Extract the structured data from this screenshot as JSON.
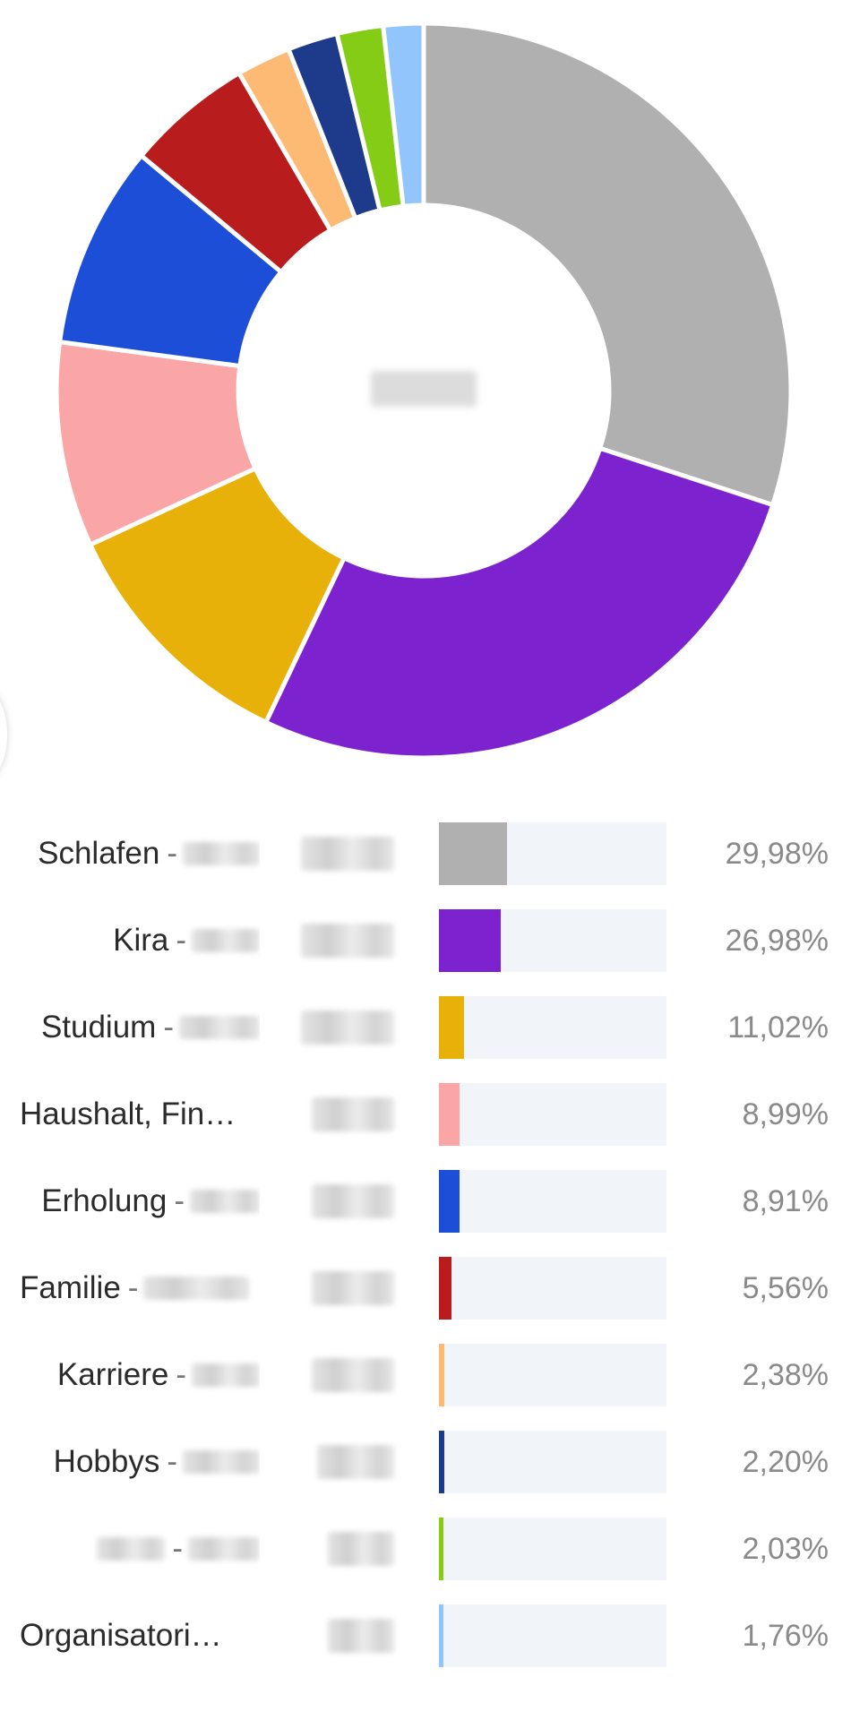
{
  "center_label": "",
  "chart_data": {
    "type": "pie",
    "title": "",
    "series": [
      {
        "name": "Schlafen",
        "value": 29.98,
        "percent_label": "29,98%",
        "color": "#b0b0b0"
      },
      {
        "name": "Kira",
        "value": 26.98,
        "percent_label": "26,98%",
        "color": "#7d22cf"
      },
      {
        "name": "Studium",
        "value": 11.02,
        "percent_label": "11,02%",
        "color": "#e8b10a"
      },
      {
        "name": "Haushalt, Fin…",
        "value": 8.99,
        "percent_label": "8,99%",
        "color": "#fba6a6"
      },
      {
        "name": "Erholung",
        "value": 8.91,
        "percent_label": "8,91%",
        "color": "#1d4ed8"
      },
      {
        "name": "Familie",
        "value": 5.56,
        "percent_label": "5,56%",
        "color": "#b91c1c"
      },
      {
        "name": "Karriere",
        "value": 2.38,
        "percent_label": "2,38%",
        "color": "#fdba74"
      },
      {
        "name": "Hobbys",
        "value": 2.2,
        "percent_label": "2,20%",
        "color": "#1e3a8a"
      },
      {
        "name": "",
        "value": 2.03,
        "percent_label": "2,03%",
        "color": "#84cc16"
      },
      {
        "name": "Organisatori…",
        "value": 1.76,
        "percent_label": "1,76%",
        "color": "#93c5fd"
      }
    ]
  },
  "legend": {
    "rows": [
      {
        "name": "Schlafen",
        "separator": "-",
        "percent": "29,98%",
        "value": 29.98,
        "color": "#b0b0b0"
      },
      {
        "name": "Kira",
        "separator": "-",
        "percent": "26,98%",
        "value": 26.98,
        "color": "#7d22cf"
      },
      {
        "name": "Studium",
        "separator": "-",
        "percent": "11,02%",
        "value": 11.02,
        "color": "#e8b10a"
      },
      {
        "name": "Haushalt, Fin…",
        "separator": "",
        "percent": "8,99%",
        "value": 8.99,
        "color": "#fba6a6"
      },
      {
        "name": "Erholung",
        "separator": "-",
        "percent": "8,91%",
        "value": 8.91,
        "color": "#1d4ed8"
      },
      {
        "name": "Familie",
        "separator": "-",
        "percent": "5,56%",
        "value": 5.56,
        "color": "#b91c1c"
      },
      {
        "name": "Karriere",
        "separator": "-",
        "percent": "2,38%",
        "value": 2.38,
        "color": "#fdba74"
      },
      {
        "name": "Hobbys",
        "separator": "-",
        "percent": "2,20%",
        "value": 2.2,
        "color": "#1e3a8a"
      },
      {
        "name": "",
        "separator": "-",
        "percent": "2,03%",
        "value": 2.03,
        "color": "#84cc16"
      },
      {
        "name": "Organisatori…",
        "separator": "",
        "percent": "1,76%",
        "value": 1.76,
        "color": "#93c5fd"
      }
    ]
  }
}
